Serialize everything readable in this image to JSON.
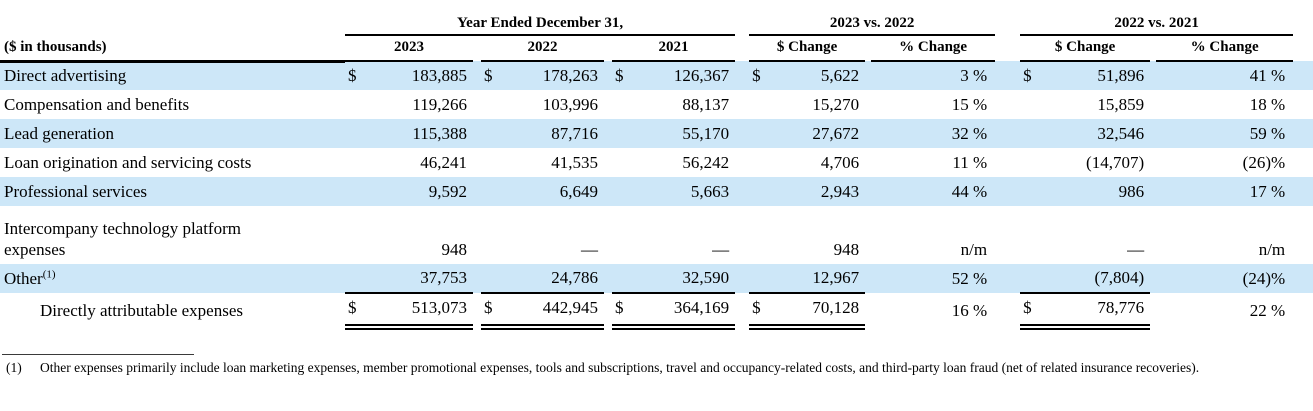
{
  "colors": {
    "row_highlight": "#cde7f8",
    "rule": "#000000"
  },
  "table": {
    "units_label": "($ in thousands)",
    "col_groups": [
      {
        "title": "Year Ended December 31,"
      },
      {
        "title": "2023 vs. 2022"
      },
      {
        "title": "2022 vs. 2021"
      }
    ],
    "columns": [
      "2023",
      "2022",
      "2021",
      "$ Change",
      "% Change",
      "$ Change",
      "% Change"
    ],
    "dollar_sign": "$",
    "rows": [
      {
        "label": "Direct advertising",
        "dollars": true,
        "shaded": true,
        "values": [
          "183,885",
          "178,263",
          "126,367",
          "5,622",
          "3 %",
          "51,896",
          "41 %"
        ]
      },
      {
        "label": "Compensation and benefits",
        "dollars": false,
        "shaded": false,
        "values": [
          "119,266",
          "103,996",
          "88,137",
          "15,270",
          "15 %",
          "15,859",
          "18 %"
        ]
      },
      {
        "label": "Lead generation",
        "dollars": false,
        "shaded": true,
        "values": [
          "115,388",
          "87,716",
          "55,170",
          "27,672",
          "32 %",
          "32,546",
          "59 %"
        ]
      },
      {
        "label": "Loan origination and servicing costs",
        "dollars": false,
        "shaded": false,
        "values": [
          "46,241",
          "41,535",
          "56,242",
          "4,706",
          "11 %",
          "(14,707)",
          "(26)%"
        ]
      },
      {
        "label": "Professional services",
        "dollars": false,
        "shaded": true,
        "values": [
          "9,592",
          "6,649",
          "5,663",
          "2,943",
          "44 %",
          "986",
          "17 %"
        ]
      },
      {
        "label": "Intercompany technology platform expenses",
        "dollars": false,
        "shaded": false,
        "wrap": true,
        "values": [
          "948",
          "—",
          "—",
          "948",
          "n/m",
          "—",
          "n/m"
        ]
      },
      {
        "label": "Other",
        "sup": "(1)",
        "dollars": false,
        "shaded": true,
        "rule_below": true,
        "values": [
          "37,753",
          "24,786",
          "32,590",
          "12,967",
          "52 %",
          "(7,804)",
          "(24)%"
        ]
      }
    ],
    "total_row": {
      "label": "Directly attributable expenses",
      "dollars": true,
      "values": [
        "513,073",
        "442,945",
        "364,169",
        "70,128",
        "16 %",
        "78,776",
        "22 %"
      ]
    }
  },
  "footnote": {
    "number": "(1)",
    "text": "Other expenses primarily include loan marketing expenses, member promotional expenses, tools and subscriptions, travel and occupancy-related costs, and third-party loan fraud (net of related insurance recoveries)."
  }
}
